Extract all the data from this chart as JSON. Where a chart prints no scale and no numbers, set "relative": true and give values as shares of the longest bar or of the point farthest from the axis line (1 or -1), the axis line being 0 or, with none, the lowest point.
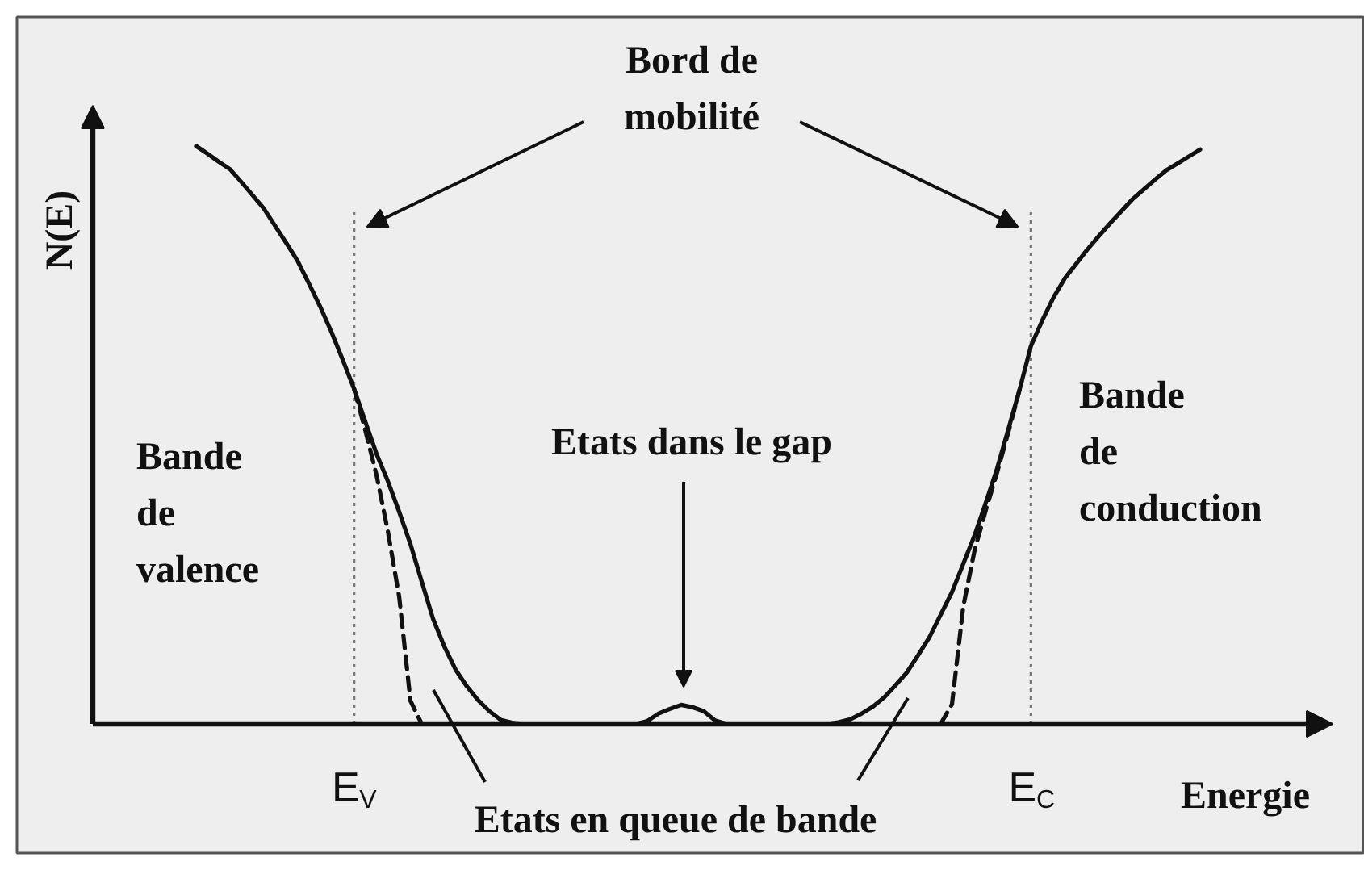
{
  "chart_data": {
    "type": "line",
    "relative": true,
    "xlabel": "Energie",
    "ylabel": "N(E)",
    "line_style": "solid",
    "categories": [
      null,
      null,
      null,
      null,
      null,
      null,
      null,
      null,
      null,
      null,
      null,
      null,
      null,
      null,
      "E$_{V}$",
      null,
      null,
      null,
      null,
      null,
      null,
      null,
      null,
      null,
      null,
      null,
      null,
      null,
      null,
      null,
      null,
      null,
      null,
      null,
      null,
      null,
      null,
      null,
      null,
      null,
      null,
      null,
      null,
      null,
      null,
      null,
      null,
      null,
      null,
      null,
      null,
      null,
      null,
      null,
      null,
      null,
      null,
      null,
      null,
      null,
      null,
      null,
      null,
      null,
      null,
      null,
      null,
      null,
      null,
      null,
      null,
      null,
      null,
      null,
      "E$_{C}$",
      null,
      null,
      null,
      null,
      null,
      null,
      null,
      null,
      null,
      null,
      null,
      null,
      null,
      null,
      null
    ],
    "ref_lines": [
      {
        "axis": "x",
        "value": "E$_{V}$",
        "color": "#777777",
        "line_style": "dotted"
      },
      {
        "axis": "x",
        "value": "E$_{C}$",
        "color": "#777777",
        "line_style": "dotted"
      }
    ],
    "annotations": [
      "Bord de mobilité",
      "Etats dans le gap",
      "Bande de valence",
      "Bande de conduction",
      "Etats en queue de bande"
    ],
    "series": [
      {
        "color": "#111111",
        "values": [
          1,
          0.987,
          0.973,
          0.96,
          0.938,
          0.915,
          0.892,
          0.862,
          0.832,
          0.801,
          0.762,
          0.722,
          0.678,
          0.63,
          0.58,
          0.523,
          0.467,
          0.42,
          0.367,
          0.311,
          0.246,
          0.182,
          0.134,
          0.094,
          0.065,
          0.041,
          0.022,
          0.007,
          0.002,
          0,
          null,
          null,
          null,
          null,
          null,
          null,
          null,
          null,
          null,
          null,
          null,
          null,
          null,
          null,
          null,
          null,
          null,
          null,
          null,
          null,
          null,
          null,
          null,
          null,
          null,
          null,
          null,
          null,
          null,
          null,
          null,
          null,
          null,
          null,
          null,
          null,
          null,
          null,
          null,
          null,
          null,
          null,
          null,
          null,
          null,
          null,
          null,
          null,
          null,
          null,
          null,
          null,
          null,
          null,
          null,
          null,
          null,
          null,
          null,
          null
        ]
      },
      {
        "color": "#111111",
        "line_style": "dashed",
        "values": [
          null,
          null,
          null,
          null,
          null,
          null,
          null,
          null,
          null,
          null,
          null,
          null,
          null,
          null,
          0.58,
          0.508,
          0.43,
          0.333,
          0.22,
          0.04,
          0,
          null,
          null,
          null,
          null,
          null,
          null,
          null,
          null,
          null,
          null,
          null,
          null,
          null,
          null,
          null,
          null,
          null,
          null,
          null,
          null,
          null,
          null,
          null,
          null,
          null,
          null,
          null,
          null,
          null,
          null,
          null,
          null,
          null,
          null,
          null,
          null,
          null,
          null,
          null,
          null,
          null,
          null,
          null,
          null,
          null,
          null,
          null,
          null,
          null,
          null,
          null,
          null,
          null,
          null,
          null,
          null,
          null,
          null,
          null,
          null,
          null,
          null,
          null,
          null,
          null,
          null,
          null,
          null,
          null
        ]
      },
      {
        "color": "#111111",
        "values": [
          null,
          null,
          null,
          null,
          null,
          null,
          null,
          null,
          null,
          null,
          null,
          null,
          null,
          null,
          null,
          null,
          null,
          null,
          null,
          null,
          null,
          null,
          null,
          null,
          null,
          null,
          null,
          null,
          null,
          null,
          null,
          null,
          null,
          null,
          null,
          null,
          null,
          null,
          null,
          0,
          0.005,
          0.018,
          0.026,
          0.033,
          0.029,
          0.022,
          0.006,
          0,
          null,
          null,
          null,
          null,
          null,
          null,
          null,
          null,
          null,
          null,
          null,
          null,
          null,
          null,
          null,
          null,
          null,
          null,
          null,
          null,
          null,
          null,
          null,
          null,
          null,
          null,
          null,
          null,
          null,
          null,
          null,
          null,
          null,
          null,
          null,
          null,
          null,
          null,
          null,
          null,
          null,
          null
        ]
      },
      {
        "color": "#111111",
        "values": [
          null,
          null,
          null,
          null,
          null,
          null,
          null,
          null,
          null,
          null,
          null,
          null,
          null,
          null,
          null,
          null,
          null,
          null,
          null,
          null,
          null,
          null,
          null,
          null,
          null,
          null,
          null,
          null,
          null,
          null,
          null,
          null,
          null,
          null,
          null,
          null,
          null,
          null,
          null,
          null,
          null,
          null,
          null,
          null,
          null,
          null,
          null,
          null,
          null,
          null,
          null,
          null,
          null,
          null,
          null,
          null,
          0,
          0.003,
          0.008,
          0.018,
          0.03,
          0.046,
          0.067,
          0.089,
          0.119,
          0.15,
          0.189,
          0.228,
          0.277,
          0.326,
          0.383,
          0.442,
          0.51,
          0.579,
          0.654,
          0.698,
          0.738,
          0.771,
          0.796,
          0.821,
          0.844,
          0.866,
          0.887,
          0.908,
          0.925,
          0.942,
          0.958,
          0.97,
          0.982,
          0.994
        ]
      },
      {
        "color": "#111111",
        "line_style": "dashed",
        "values": [
          null,
          null,
          null,
          null,
          null,
          null,
          null,
          null,
          null,
          null,
          null,
          null,
          null,
          null,
          null,
          null,
          null,
          null,
          null,
          null,
          null,
          null,
          null,
          null,
          null,
          null,
          null,
          null,
          null,
          null,
          null,
          null,
          null,
          null,
          null,
          null,
          null,
          null,
          null,
          null,
          null,
          null,
          null,
          null,
          null,
          null,
          null,
          null,
          null,
          null,
          null,
          null,
          null,
          null,
          null,
          null,
          null,
          null,
          null,
          null,
          null,
          null,
          null,
          null,
          null,
          null,
          0,
          0.034,
          0.203,
          0.3,
          0.37,
          0.435,
          0.505,
          0.579,
          null,
          null,
          null,
          null,
          null,
          null,
          null,
          null,
          null,
          null,
          null,
          null,
          null,
          null,
          null,
          null
        ]
      }
    ]
  }
}
